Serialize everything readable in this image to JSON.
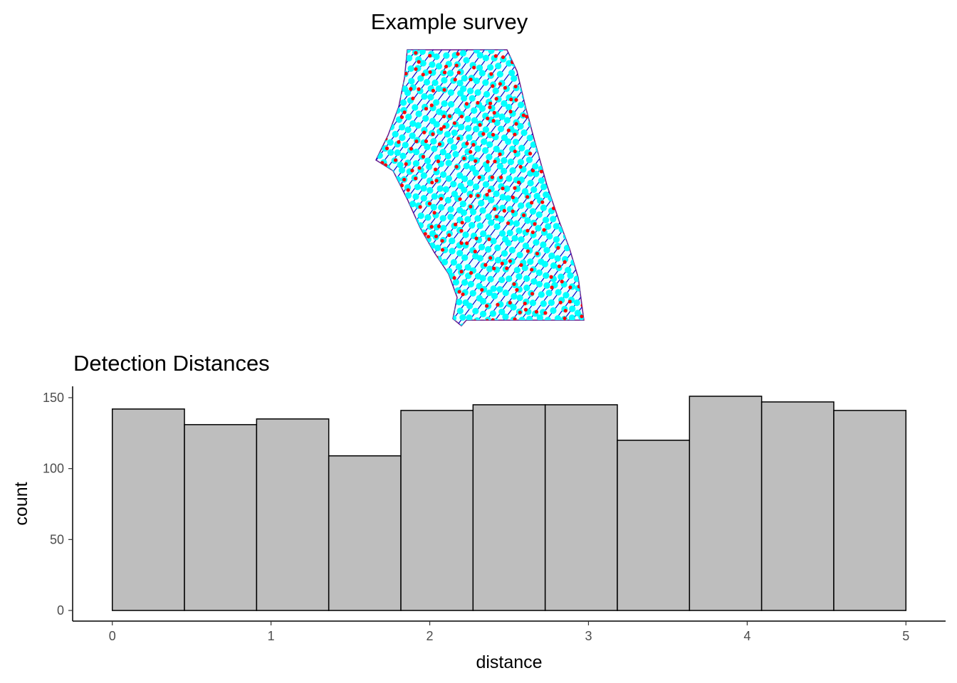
{
  "chart_data": [
    {
      "type": "map",
      "title": "Example survey",
      "colors": {
        "transects": "#0000cc",
        "detections": "#ff0000",
        "points": "#00ffff"
      }
    },
    {
      "type": "bar",
      "title": "Detection Distances",
      "xlabel": "distance",
      "ylabel": "count",
      "xlim": [
        -0.25,
        5.25
      ],
      "ylim": [
        -7.5,
        158
      ],
      "x_ticks": [
        "0",
        "1",
        "2",
        "3",
        "4",
        "5"
      ],
      "y_ticks": [
        "0",
        "50",
        "100",
        "150"
      ],
      "bin_edges": [
        0,
        0.4545,
        0.9091,
        1.3636,
        1.8182,
        2.2727,
        2.7273,
        3.1818,
        3.6364,
        4.0909,
        4.5455,
        5.0
      ],
      "values": [
        142,
        131,
        135,
        109,
        141,
        145,
        145,
        120,
        151,
        147,
        141
      ],
      "fill": "#bebebe",
      "edge": "#000000"
    }
  ]
}
